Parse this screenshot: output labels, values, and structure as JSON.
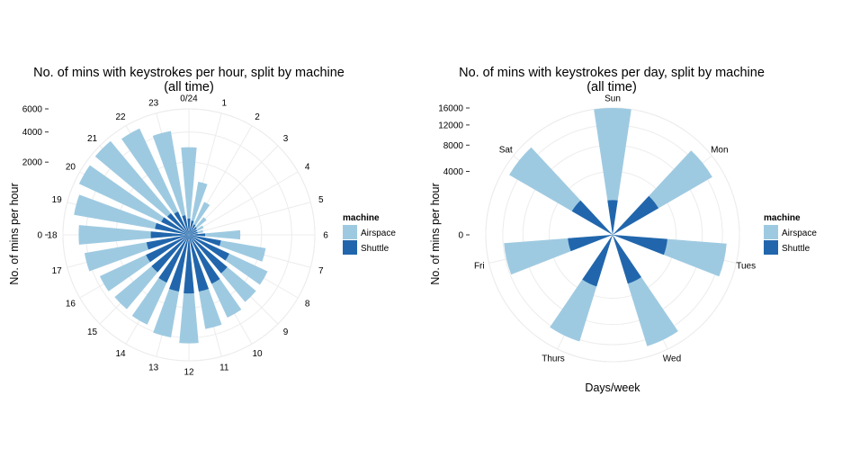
{
  "colors": {
    "airspace": "#9ecae1",
    "shuttle": "#2166ac",
    "grid": "#ececec"
  },
  "chart_data": [
    {
      "type": "bar",
      "coord": "polar",
      "title": "No. of mins with keystrokes per hour, split by machine",
      "subtitle": "(all time)",
      "xlabel": "",
      "ylabel": "No. of mins per hour",
      "ylim": [
        0,
        6000
      ],
      "yticks": [
        0,
        2000,
        4000,
        6000
      ],
      "yticklabels": [
        "0",
        "2000",
        "4000",
        "6000"
      ],
      "categories": [
        "0/24",
        "1",
        "2",
        "3",
        "4",
        "5",
        "6",
        "7",
        "8",
        "9",
        "10",
        "11",
        "12",
        "13",
        "14",
        "15",
        "16",
        "17",
        "18",
        "19",
        "20",
        "21",
        "22",
        "23"
      ],
      "series": [
        {
          "name": "Airspace",
          "values": [
            2900,
            1100,
            500,
            200,
            100,
            80,
            1000,
            2300,
            2850,
            2900,
            3150,
            3450,
            4450,
            4100,
            3700,
            3550,
            3650,
            4250,
            4600,
            5150,
            5550,
            5650,
            5200,
            4200
          ]
        },
        {
          "name": "Shuttle",
          "values": [
            100,
            80,
            50,
            40,
            30,
            30,
            100,
            400,
            750,
            950,
            1100,
            1250,
            1300,
            1250,
            1050,
            900,
            850,
            700,
            550,
            450,
            350,
            300,
            250,
            150
          ]
        }
      ],
      "legend": {
        "title": "machine",
        "position": "right"
      },
      "grid": true
    },
    {
      "type": "bar",
      "coord": "polar",
      "title": "No. of mins with keystrokes per day, split by machine",
      "subtitle": "(all time)",
      "xlabel": "Days/week",
      "ylabel": "No. of mins per hour",
      "ylim": [
        0,
        16000
      ],
      "yticks": [
        0,
        4000,
        8000,
        12000,
        16000
      ],
      "yticklabels": [
        "0",
        "4000",
        "8000",
        "12000",
        "16000"
      ],
      "categories": [
        "Sun",
        "Mon",
        "Tues",
        "Wed",
        "Thurs",
        "Fri",
        "Sat"
      ],
      "series": [
        {
          "name": "Airspace",
          "values": [
            16000,
            13200,
            13000,
            13500,
            12400,
            11800,
            14200
          ]
        },
        {
          "name": "Shuttle",
          "values": [
            1200,
            2800,
            3000,
            2600,
            2900,
            2000,
            2200
          ]
        }
      ],
      "legend": {
        "title": "machine",
        "position": "right"
      },
      "grid": true
    }
  ]
}
